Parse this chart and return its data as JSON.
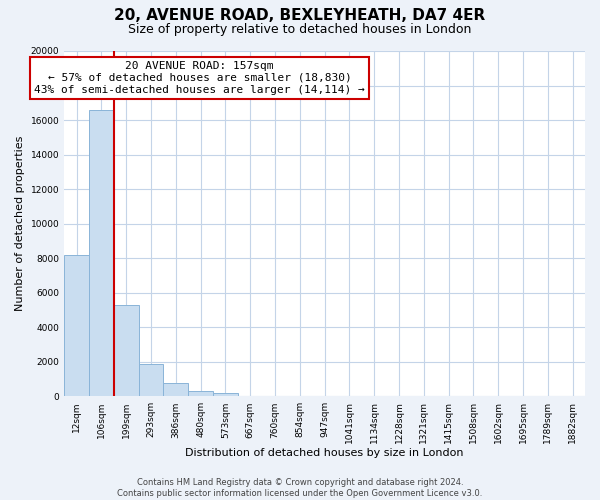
{
  "title": "20, AVENUE ROAD, BEXLEYHEATH, DA7 4ER",
  "subtitle": "Size of property relative to detached houses in London",
  "xlabel": "Distribution of detached houses by size in London",
  "ylabel": "Number of detached properties",
  "bar_labels": [
    "12sqm",
    "106sqm",
    "199sqm",
    "293sqm",
    "386sqm",
    "480sqm",
    "573sqm",
    "667sqm",
    "760sqm",
    "854sqm",
    "947sqm",
    "1041sqm",
    "1134sqm",
    "1228sqm",
    "1321sqm",
    "1415sqm",
    "1508sqm",
    "1602sqm",
    "1695sqm",
    "1789sqm",
    "1882sqm"
  ],
  "bar_values": [
    8200,
    16600,
    5300,
    1850,
    800,
    310,
    200,
    0,
    0,
    0,
    0,
    0,
    0,
    0,
    0,
    0,
    0,
    0,
    0,
    0,
    0
  ],
  "bar_color": "#c9ddf0",
  "bar_edge_color": "#8ab4d8",
  "annotation_line1": "20 AVENUE ROAD: 157sqm",
  "annotation_line2": "← 57% of detached houses are smaller (18,830)",
  "annotation_line3": "43% of semi-detached houses are larger (14,114) →",
  "property_line_x": 1.5,
  "vline_color": "#cc0000",
  "ylim": [
    0,
    20000
  ],
  "yticks": [
    0,
    2000,
    4000,
    6000,
    8000,
    10000,
    12000,
    14000,
    16000,
    18000,
    20000
  ],
  "footer_line1": "Contains HM Land Registry data © Crown copyright and database right 2024.",
  "footer_line2": "Contains public sector information licensed under the Open Government Licence v3.0.",
  "bg_color": "#edf2f9",
  "plot_bg_color": "#ffffff",
  "grid_color": "#c4d4e8",
  "title_fontsize": 11,
  "subtitle_fontsize": 9,
  "axis_label_fontsize": 8,
  "tick_fontsize": 6.5,
  "annotation_fontsize": 8,
  "footer_fontsize": 6
}
